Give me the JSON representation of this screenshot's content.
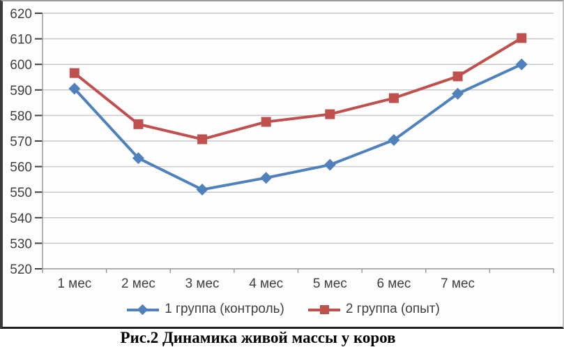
{
  "chart_data": {
    "type": "line",
    "title": "",
    "xlabel": "",
    "ylabel": "",
    "categories": [
      "1 мес",
      "2 мес",
      "3 мес",
      "4 мес",
      "5 мес",
      "6 мес",
      "7 мес",
      ""
    ],
    "series": [
      {
        "name": "1 группа (контроль)",
        "color": "#4f81bd",
        "marker": "diamond",
        "values": [
          590.5,
          563.3,
          551.0,
          555.6,
          560.7,
          570.4,
          588.5,
          600.0
        ]
      },
      {
        "name": "2 группа (опыт)",
        "color": "#c0504d",
        "marker": "square",
        "values": [
          596.6,
          576.6,
          570.7,
          577.5,
          580.5,
          586.8,
          595.3,
          610.3
        ]
      }
    ],
    "ylim": [
      520,
      620
    ],
    "ytick_step": 10,
    "grid": true,
    "legend_position": "bottom",
    "colors": {
      "gridline": "#c9c9c9",
      "axis": "#9b9b9b",
      "text": "#3f3f3f"
    }
  },
  "caption": "Рис.2 Динамика живой массы у коров"
}
